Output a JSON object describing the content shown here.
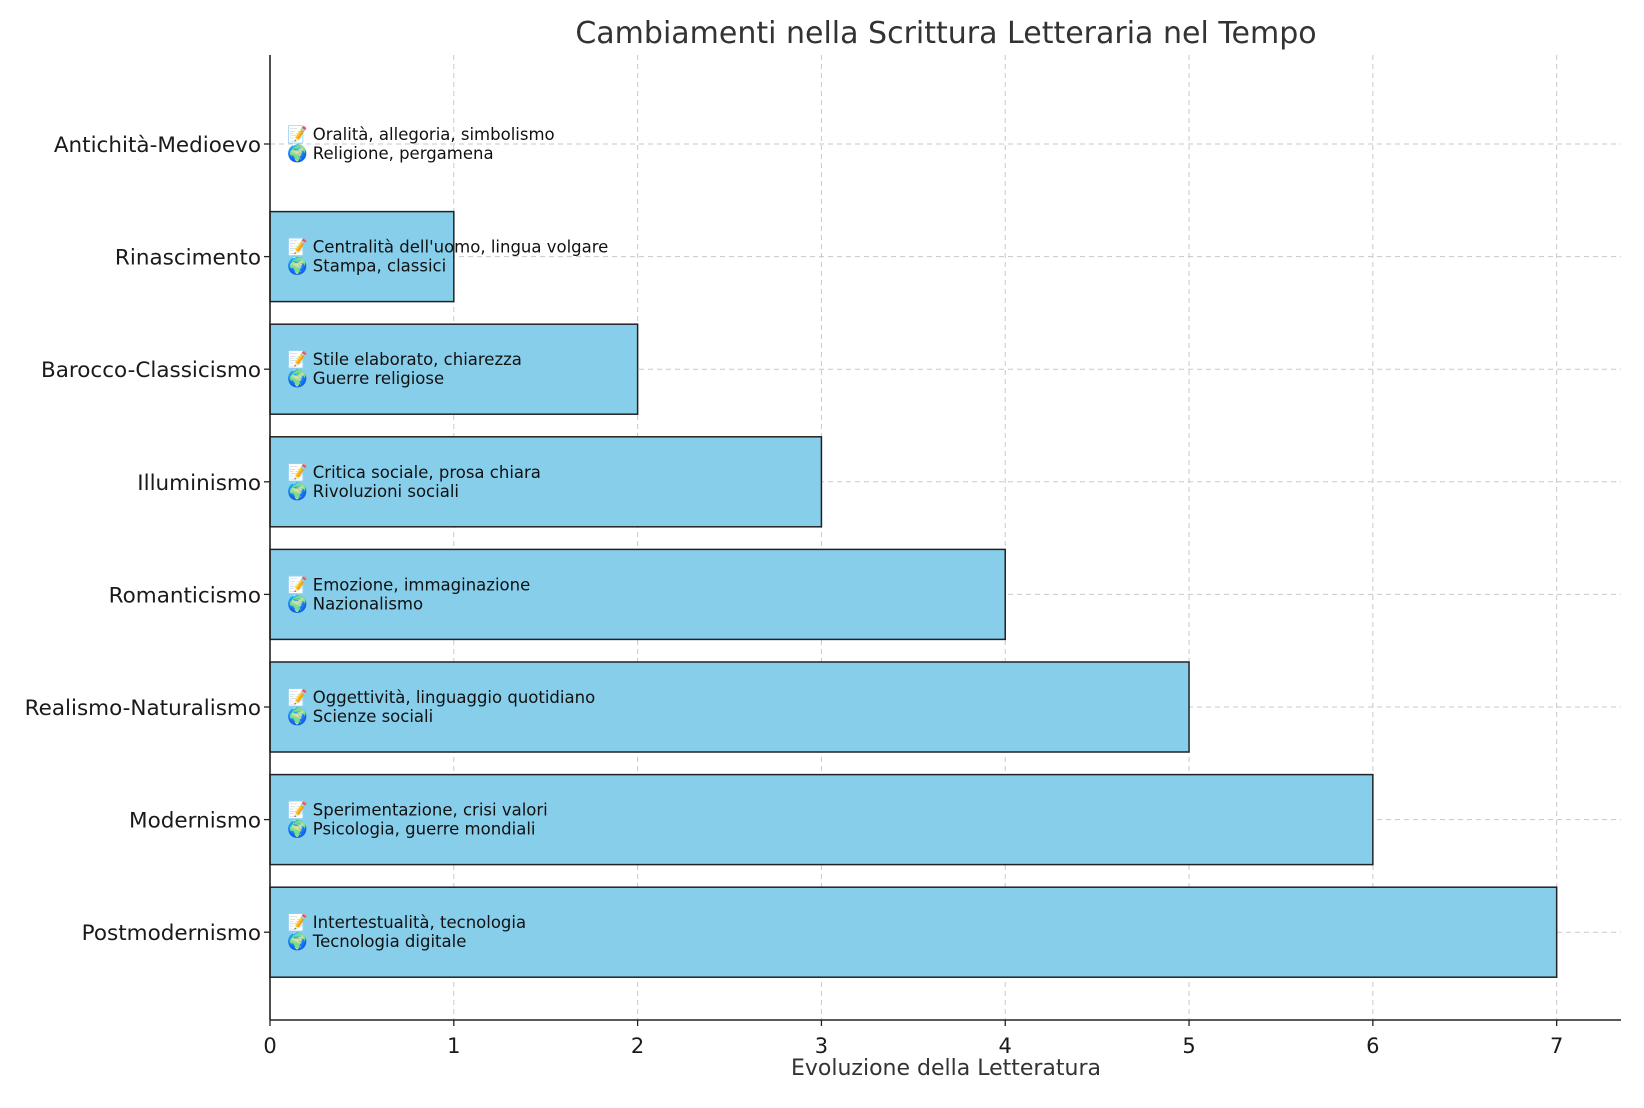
{
  "chart_data": {
    "type": "bar",
    "orientation": "horizontal",
    "title": "Cambiamenti nella Scrittura Letteraria nel Tempo",
    "xlabel": "Evoluzione della Letteratura",
    "ylabel": "",
    "xlim": [
      0,
      7.35
    ],
    "xticks": [
      0,
      1,
      2,
      3,
      4,
      5,
      6,
      7
    ],
    "grid": true,
    "bar_color": "#87CEEB",
    "edge_color": "#222222",
    "categories": [
      "Antichità-Medioevo",
      "Rinascimento",
      "Barocco-Classicismo",
      "Illuminismo",
      "Romanticismo",
      "Realismo-Naturalismo",
      "Modernismo",
      "Postmodernismo"
    ],
    "values": [
      0,
      1,
      2,
      3,
      4,
      5,
      6,
      7
    ],
    "annotations": [
      [
        "📝 Oralità, allegoria, simbolismo",
        "🌍 Religione, pergamena"
      ],
      [
        "📝 Centralità dell'uomo, lingua volgare",
        "🌍 Stampa, classici"
      ],
      [
        "📝 Stile elaborato, chiarezza",
        "🌍 Guerre religiose"
      ],
      [
        "📝 Critica sociale, prosa chiara",
        "🌍 Rivoluzioni sociali"
      ],
      [
        "📝 Emozione, immaginazione",
        "🌍 Nazionalismo"
      ],
      [
        "📝 Oggettività, linguaggio quotidiano",
        "🌍 Scienze sociali"
      ],
      [
        "📝 Sperimentazione, crisi valori",
        "🌍 Psicologia, guerre mondiali"
      ],
      [
        "📝 Intertestualità, tecnologia",
        "🌍 Tecnologia digitale"
      ]
    ]
  }
}
